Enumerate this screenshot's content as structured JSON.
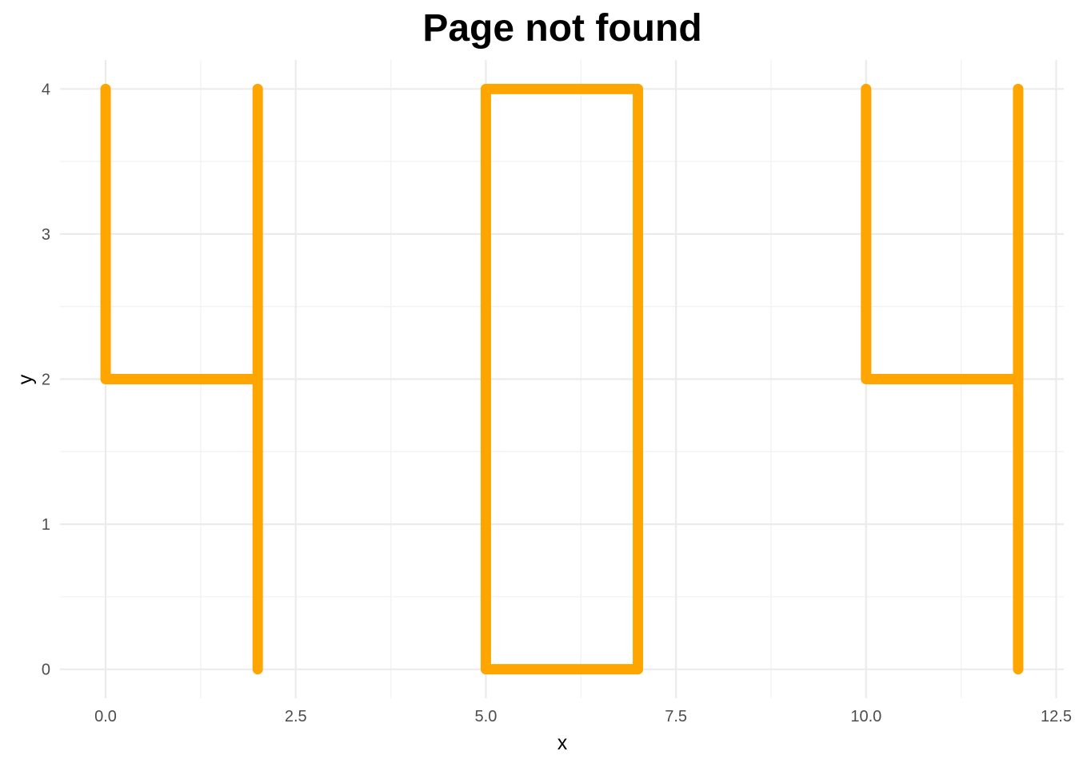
{
  "chart_data": {
    "type": "line",
    "title": "Page not found",
    "xlabel": "x",
    "ylabel": "y",
    "xlim": [
      -0.6,
      12.6
    ],
    "ylim": [
      -0.2,
      4.2
    ],
    "x_ticks": [
      0,
      2.5,
      5,
      7.5,
      10,
      12.5
    ],
    "x_tick_labels": [
      "0.0",
      "2.5",
      "5.0",
      "7.5",
      "10.0",
      "12.5"
    ],
    "x_minor_ticks": [
      1.25,
      3.75,
      6.25,
      8.75,
      11.25
    ],
    "y_ticks": [
      0,
      1,
      2,
      3,
      4
    ],
    "y_tick_labels": [
      "0",
      "1",
      "2",
      "3",
      "4"
    ],
    "y_minor_ticks": [
      0.5,
      1.5,
      2.5,
      3.5
    ],
    "grid": true,
    "line_color": "#FFA500",
    "paths": [
      {
        "points": [
          [
            0,
            4
          ],
          [
            0,
            2
          ],
          [
            2,
            2
          ]
        ]
      },
      {
        "points": [
          [
            2,
            4
          ],
          [
            2,
            0
          ]
        ]
      },
      {
        "points": [
          [
            5,
            0
          ],
          [
            5,
            4
          ],
          [
            7,
            4
          ],
          [
            7,
            0
          ],
          [
            5,
            0
          ]
        ]
      },
      {
        "points": [
          [
            10,
            4
          ],
          [
            10,
            2
          ],
          [
            12,
            2
          ]
        ]
      },
      {
        "points": [
          [
            12,
            4
          ],
          [
            12,
            0
          ]
        ]
      }
    ]
  }
}
